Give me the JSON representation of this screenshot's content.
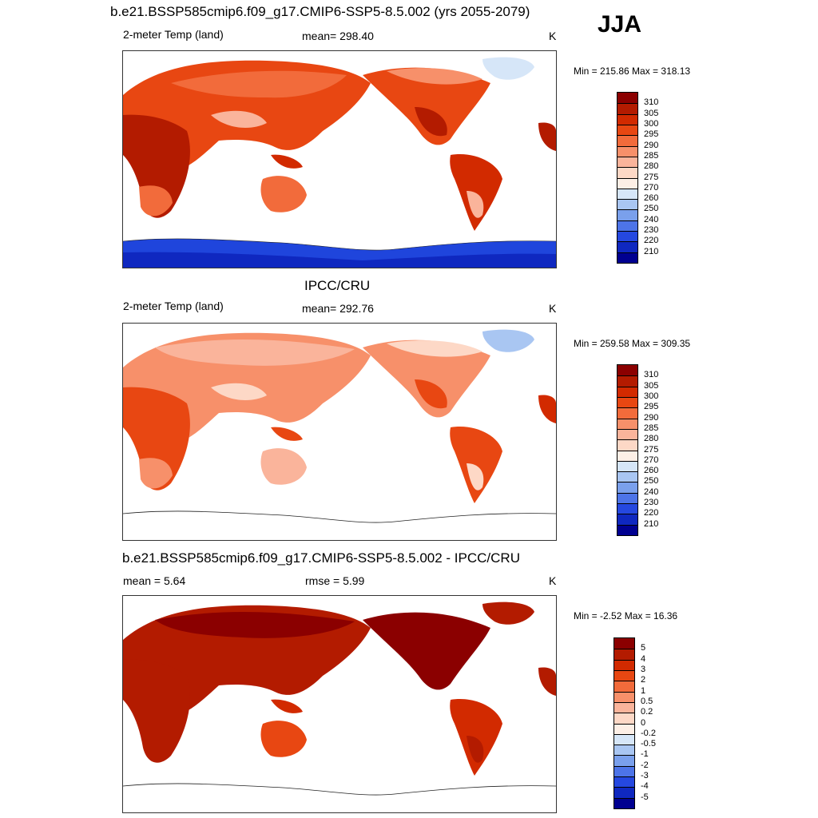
{
  "header": {
    "title": "b.e21.BSSP585cmip6.f09_g17.CMIP6-SSP5-8.5.002 (yrs 2055-2079)",
    "season": "JJA"
  },
  "panels": [
    {
      "id": "model",
      "title": "",
      "left_label": "2-meter Temp (land)",
      "center_label": "mean= 298.40",
      "right_label": "K",
      "minmax": "Min = 215.86 Max = 318.13",
      "colorbar": {
        "labels": [
          "310",
          "305",
          "300",
          "295",
          "290",
          "285",
          "280",
          "275",
          "270",
          "260",
          "250",
          "240",
          "230",
          "220",
          "210"
        ],
        "colors": [
          "#8b0000",
          "#b31b00",
          "#d22a00",
          "#e84712",
          "#f26b3b",
          "#f7906a",
          "#fab49b",
          "#fdd8c6",
          "#fdefe6",
          "#d6e6f8",
          "#a9c6f2",
          "#7aa0ec",
          "#4d74e8",
          "#2548e0",
          "#0f28c0",
          "#000090"
        ]
      }
    },
    {
      "id": "obs",
      "title": "IPCC/CRU",
      "left_label": "2-meter Temp (land)",
      "center_label": "mean= 292.76",
      "right_label": "K",
      "minmax": "Min = 259.58 Max = 309.35",
      "colorbar": {
        "labels": [
          "310",
          "305",
          "300",
          "295",
          "290",
          "285",
          "280",
          "275",
          "270",
          "260",
          "250",
          "240",
          "230",
          "220",
          "210"
        ],
        "colors": [
          "#8b0000",
          "#b31b00",
          "#d22a00",
          "#e84712",
          "#f26b3b",
          "#f7906a",
          "#fab49b",
          "#fdd8c6",
          "#fdefe6",
          "#d6e6f8",
          "#a9c6f2",
          "#7aa0ec",
          "#4d74e8",
          "#2548e0",
          "#0f28c0",
          "#000090"
        ]
      }
    },
    {
      "id": "diff",
      "title": "b.e21.BSSP585cmip6.f09_g17.CMIP6-SSP5-8.5.002 - IPCC/CRU",
      "left_label": "mean =   5.64",
      "center_label": "rmse =   5.99",
      "right_label": "K",
      "minmax": "Min =  -2.52 Max =  16.36",
      "colorbar": {
        "labels": [
          "5",
          "4",
          "3",
          "2",
          "1",
          "0.5",
          "0.2",
          "0",
          "-0.2",
          "-0.5",
          "-1",
          "-2",
          "-3",
          "-4",
          "-5"
        ],
        "colors": [
          "#8b0000",
          "#b31b00",
          "#d22a00",
          "#e84712",
          "#f26b3b",
          "#f7906a",
          "#fab49b",
          "#fdd8c6",
          "#fdefe6",
          "#d6e6f8",
          "#a9c6f2",
          "#7aa0ec",
          "#4d74e8",
          "#2548e0",
          "#0f28c0",
          "#000090"
        ]
      }
    }
  ],
  "chart_data": [
    {
      "type": "heatmap",
      "title": "b.e21.BSSP585cmip6.f09_g17.CMIP6-SSP5-8.5.002 (yrs 2055-2079)",
      "variable": "2-meter Temp (land)",
      "units": "K",
      "mean": 298.4,
      "min": 215.86,
      "max": 318.13,
      "contour_levels": [
        210,
        220,
        230,
        240,
        250,
        260,
        270,
        275,
        280,
        285,
        290,
        295,
        300,
        305,
        310
      ]
    },
    {
      "type": "heatmap",
      "title": "IPCC/CRU",
      "variable": "2-meter Temp (land)",
      "units": "K",
      "mean": 292.76,
      "min": 259.58,
      "max": 309.35,
      "contour_levels": [
        210,
        220,
        230,
        240,
        250,
        260,
        270,
        275,
        280,
        285,
        290,
        295,
        300,
        305,
        310
      ]
    },
    {
      "type": "heatmap",
      "title": "b.e21.BSSP585cmip6.f09_g17.CMIP6-SSP5-8.5.002 - IPCC/CRU",
      "units": "K",
      "mean": 5.64,
      "rmse": 5.99,
      "min": -2.52,
      "max": 16.36,
      "contour_levels": [
        -5,
        -4,
        -3,
        -2,
        -1,
        -0.5,
        -0.2,
        0,
        0.2,
        0.5,
        1,
        2,
        3,
        4,
        5
      ]
    }
  ]
}
